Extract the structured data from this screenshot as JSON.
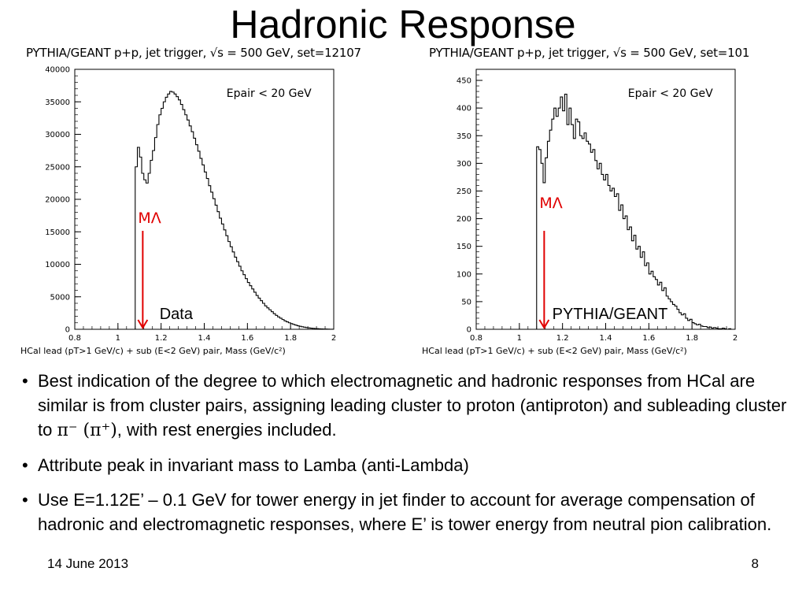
{
  "slide": {
    "title": "Hadronic Response",
    "date": "14 June 2013",
    "page_number": "8"
  },
  "bullets": [
    {
      "pre": "Best indication of the degree to which electromagnetic and hadronic responses from HCal are similar is from cluster pairs, assigning leading cluster to proton (antiproton) and subleading cluster to ",
      "symbol": "π⁻ (π⁺)",
      "post": ", with rest energies included."
    },
    {
      "pre": "Attribute peak in invariant mass to Lamba (anti-Lambda)",
      "symbol": "",
      "post": ""
    },
    {
      "pre": "Use E=1.12E’ – 0.1 GeV for tower energy in jet finder to account for average compensation of hadronic and electromagnetic responses, where E’ is tower energy from neutral pion calibration.",
      "symbol": "",
      "post": ""
    }
  ],
  "colors": {
    "annotation": "#e00000",
    "histogram": "#000000"
  },
  "chart_data": [
    {
      "type": "line",
      "style": "step-histogram",
      "header": "PYTHIA/GEANT p+p, jet trigger, √s = 500 GeV, set=12107",
      "xlabel": "HCal lead (pT>1 GeV/c) + sub (E<2 GeV) pair, Mass (GeV/c²)",
      "ylabel": "",
      "xlim": [
        0.8,
        2.0
      ],
      "ylim": [
        0,
        40000
      ],
      "xticks": [
        0.8,
        1.0,
        1.2,
        1.4,
        1.6,
        1.8,
        2.0
      ],
      "xtick_labels": [
        "0.8",
        "1",
        "1.2",
        "1.4",
        "1.6",
        "1.8",
        "2"
      ],
      "yticks": [
        0,
        5000,
        10000,
        15000,
        20000,
        25000,
        30000,
        35000,
        40000
      ],
      "ytick_labels": [
        "0",
        "5000",
        "10000",
        "15000",
        "20000",
        "25000",
        "30000",
        "35000",
        "40000"
      ],
      "cut_label": "Epair < 20 GeV",
      "label": "Data",
      "marker_label": "MΛ",
      "marker_x": 1.115,
      "series": [
        {
          "x": [
            1.08,
            1.09,
            1.1,
            1.11,
            1.12,
            1.13,
            1.14,
            1.15,
            1.16,
            1.17,
            1.18,
            1.19,
            1.2,
            1.21,
            1.22,
            1.23,
            1.24,
            1.25,
            1.26,
            1.27,
            1.28,
            1.29,
            1.3,
            1.31,
            1.32,
            1.33,
            1.34,
            1.35,
            1.36,
            1.37,
            1.38,
            1.39,
            1.4,
            1.41,
            1.42,
            1.43,
            1.44,
            1.45,
            1.46,
            1.47,
            1.48,
            1.49,
            1.5,
            1.51,
            1.52,
            1.53,
            1.54,
            1.55,
            1.56,
            1.57,
            1.58,
            1.59,
            1.6,
            1.61,
            1.62,
            1.63,
            1.64,
            1.65,
            1.66,
            1.67,
            1.68,
            1.69,
            1.7,
            1.71,
            1.72,
            1.73,
            1.74,
            1.75,
            1.76,
            1.77,
            1.78,
            1.79,
            1.8,
            1.81,
            1.82,
            1.83,
            1.84,
            1.85,
            1.86,
            1.87,
            1.88,
            1.89,
            1.9,
            1.91,
            1.92,
            1.93,
            1.94,
            1.95,
            1.96,
            1.97,
            1.98,
            1.99,
            2.0
          ],
          "y": [
            25000,
            28000,
            26500,
            24000,
            23000,
            22500,
            24000,
            26000,
            27500,
            29500,
            31500,
            33000,
            34000,
            35000,
            35700,
            36200,
            36600,
            36500,
            36200,
            35800,
            35300,
            34600,
            33800,
            33000,
            32200,
            31300,
            30400,
            29400,
            28400,
            27400,
            26300,
            25300,
            24200,
            23200,
            22100,
            21100,
            20100,
            19100,
            18100,
            17100,
            16200,
            15300,
            14400,
            13500,
            12700,
            11900,
            11100,
            10400,
            9700,
            9000,
            8400,
            7800,
            7200,
            6700,
            6200,
            5700,
            5200,
            4800,
            4400,
            4000,
            3600,
            3300,
            3000,
            2700,
            2400,
            2150,
            1900,
            1700,
            1500,
            1300,
            1150,
            1000,
            870,
            750,
            640,
            540,
            460,
            390,
            330,
            270,
            220,
            180,
            150,
            120,
            95,
            75,
            60,
            45,
            35,
            25,
            15,
            8,
            0
          ]
        }
      ]
    },
    {
      "type": "line",
      "style": "step-histogram",
      "header": "PYTHIA/GEANT p+p, jet trigger, √s = 500 GeV, set=101",
      "xlabel": "HCal lead (pT>1 GeV/c) + sub (E<2 GeV) pair, Mass (GeV/c²)",
      "ylabel": "",
      "xlim": [
        0.8,
        2.0
      ],
      "ylim": [
        0,
        470
      ],
      "xticks": [
        0.8,
        1.0,
        1.2,
        1.4,
        1.6,
        1.8,
        2.0
      ],
      "xtick_labels": [
        "0.8",
        "1",
        "1.2",
        "1.4",
        "1.6",
        "1.8",
        "2"
      ],
      "yticks": [
        0,
        50,
        100,
        150,
        200,
        250,
        300,
        350,
        400,
        450
      ],
      "ytick_labels": [
        "0",
        "50",
        "100",
        "150",
        "200",
        "250",
        "300",
        "350",
        "400",
        "450"
      ],
      "cut_label": "Epair < 20 GeV",
      "label": "PYTHIA/GEANT",
      "marker_label": "MΛ",
      "marker_x": 1.115,
      "series": [
        {
          "x": [
            1.08,
            1.09,
            1.1,
            1.11,
            1.12,
            1.13,
            1.14,
            1.15,
            1.16,
            1.17,
            1.18,
            1.19,
            1.2,
            1.21,
            1.22,
            1.23,
            1.24,
            1.25,
            1.26,
            1.27,
            1.28,
            1.29,
            1.3,
            1.31,
            1.32,
            1.33,
            1.34,
            1.35,
            1.36,
            1.37,
            1.38,
            1.39,
            1.4,
            1.41,
            1.42,
            1.43,
            1.44,
            1.45,
            1.46,
            1.47,
            1.48,
            1.49,
            1.5,
            1.51,
            1.52,
            1.53,
            1.54,
            1.55,
            1.56,
            1.57,
            1.58,
            1.59,
            1.6,
            1.61,
            1.62,
            1.63,
            1.64,
            1.65,
            1.66,
            1.67,
            1.68,
            1.69,
            1.7,
            1.71,
            1.72,
            1.73,
            1.74,
            1.75,
            1.76,
            1.77,
            1.78,
            1.79,
            1.8,
            1.81,
            1.82,
            1.83,
            1.84,
            1.85,
            1.86,
            1.87,
            1.88,
            1.89,
            1.9,
            1.91,
            1.92,
            1.93,
            1.94,
            1.95,
            1.96,
            1.97,
            1.98,
            1.99,
            2.0
          ],
          "y": [
            330,
            325,
            300,
            265,
            310,
            340,
            360,
            380,
            400,
            385,
            400,
            420,
            395,
            425,
            370,
            400,
            370,
            345,
            380,
            375,
            350,
            345,
            355,
            340,
            335,
            320,
            325,
            305,
            290,
            300,
            280,
            270,
            280,
            260,
            250,
            255,
            240,
            245,
            215,
            225,
            200,
            205,
            180,
            185,
            160,
            170,
            145,
            150,
            130,
            140,
            115,
            120,
            100,
            105,
            95,
            90,
            80,
            85,
            70,
            75,
            60,
            55,
            50,
            45,
            42,
            36,
            30,
            26,
            28,
            20,
            16,
            18,
            12,
            10,
            8,
            9,
            6,
            5,
            5,
            3,
            4,
            2,
            3,
            2,
            1,
            1,
            2,
            1,
            0,
            1,
            0,
            0,
            0
          ]
        }
      ]
    }
  ]
}
